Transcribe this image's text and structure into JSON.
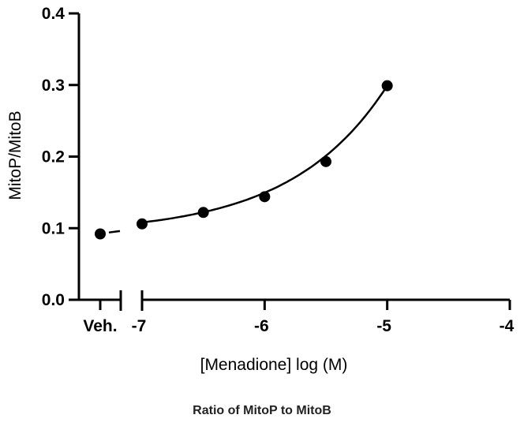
{
  "caption": "Ratio of MitoP to MitoB",
  "chart_data": {
    "type": "scatter",
    "xlabel": "[Menadione] log (M)",
    "ylabel": "MitoP/MitoB",
    "ylim": [
      0,
      0.4
    ],
    "xlim": [
      -7,
      -4
    ],
    "yticks": [
      0.0,
      0.1,
      0.2,
      0.3,
      0.4
    ],
    "ytick_labels": [
      "0.0",
      "0.1",
      "0.2",
      "0.3",
      "0.4"
    ],
    "xticks": [
      -7,
      -6,
      -5,
      -4
    ],
    "xtick_labels": [
      "-7",
      "-6",
      "-5",
      "-4"
    ],
    "vehicle_label": "Veh.",
    "vehicle_value": 0.092,
    "x_scale": "log concentration (M)",
    "axis_break": true,
    "points": [
      {
        "x": -7.0,
        "y": 0.106
      },
      {
        "x": -6.5,
        "y": 0.122
      },
      {
        "x": -6.0,
        "y": 0.144
      },
      {
        "x": -5.5,
        "y": 0.193
      },
      {
        "x": -5.0,
        "y": 0.299
      }
    ],
    "fit_curve": true,
    "grid": false,
    "marker_color": "#000000"
  }
}
